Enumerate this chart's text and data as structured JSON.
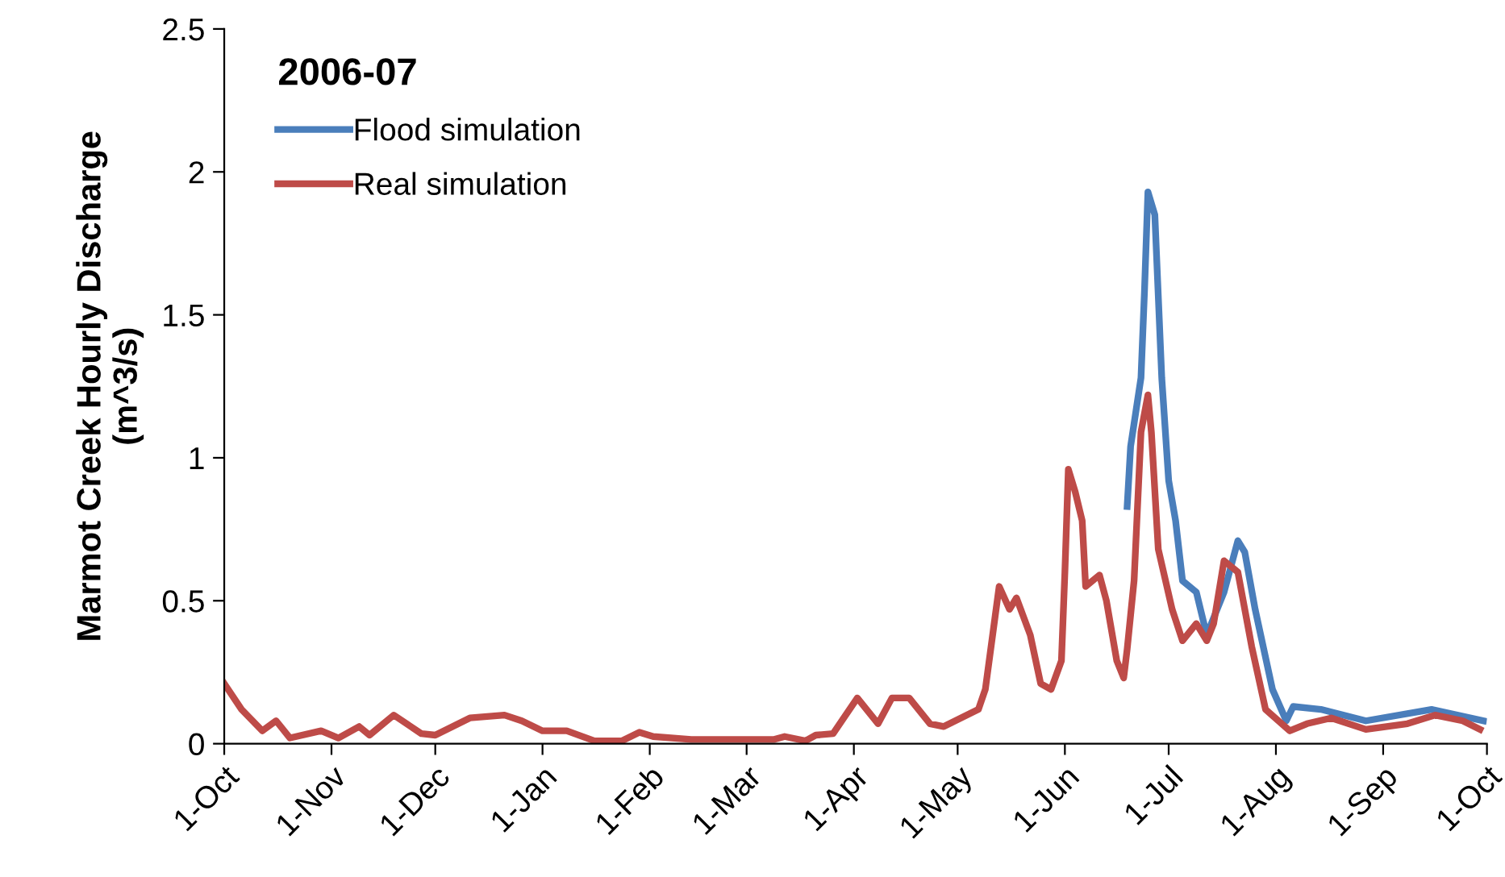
{
  "chart_data": {
    "type": "line",
    "legend_title": "2006-07",
    "ylabel": "Marmot Creek Hourly Discharge\n(m^3/s)",
    "legend": "top left",
    "grid": false,
    "xlim": [
      "2006-10-01",
      "2007-10-01"
    ],
    "xticks": [
      {
        "value": "2006-10-01",
        "label": "1-Oct"
      },
      {
        "value": "2006-11-01",
        "label": "1-Nov"
      },
      {
        "value": "2006-12-01",
        "label": "1-Dec"
      },
      {
        "value": "2007-01-01",
        "label": "1-Jan"
      },
      {
        "value": "2007-02-01",
        "label": "1-Feb"
      },
      {
        "value": "2007-03-01",
        "label": "1-Mar"
      },
      {
        "value": "2007-04-01",
        "label": "1-Apr"
      },
      {
        "value": "2007-05-01",
        "label": "1-May"
      },
      {
        "value": "2007-06-01",
        "label": "1-Jun"
      },
      {
        "value": "2007-07-01",
        "label": "1-Jul"
      },
      {
        "value": "2007-08-01",
        "label": "1-Aug"
      },
      {
        "value": "2007-09-01",
        "label": "1-Sep"
      },
      {
        "value": "2007-10-01",
        "label": "1-Oct"
      }
    ],
    "ylim": [
      0,
      2.5
    ],
    "yticks": [
      0,
      0.5,
      1,
      1.5,
      2,
      2.5
    ],
    "series": [
      {
        "name": "Flood simulation",
        "color": "#4a7ebb",
        "x": [
          "2007-06-19",
          "2007-06-20",
          "2007-06-23",
          "2007-06-24",
          "2007-06-25",
          "2007-06-27",
          "2007-06-29",
          "2007-07-01",
          "2007-07-03",
          "2007-07-05",
          "2007-07-09",
          "2007-07-12",
          "2007-07-17",
          "2007-07-21",
          "2007-07-23",
          "2007-07-26",
          "2007-07-31",
          "2007-08-04",
          "2007-08-06",
          "2007-08-14",
          "2007-08-27",
          "2007-09-15",
          "2007-09-30"
        ],
        "values": [
          0.83,
          1.04,
          1.28,
          1.58,
          1.93,
          1.85,
          1.28,
          0.92,
          0.78,
          0.57,
          0.53,
          0.38,
          0.53,
          0.71,
          0.67,
          0.47,
          0.19,
          0.08,
          0.13,
          0.12,
          0.08,
          0.12,
          0.08
        ]
      },
      {
        "name": "Real simulation",
        "color": "#be4b48",
        "x": [
          "2006-10-01",
          "2006-10-06",
          "2006-10-12",
          "2006-10-16",
          "2006-10-20",
          "2006-10-29",
          "2006-11-03",
          "2006-11-09",
          "2006-11-12",
          "2006-11-19",
          "2006-11-27",
          "2006-12-01",
          "2006-12-11",
          "2006-12-21",
          "2006-12-26",
          "2007-01-01",
          "2007-01-08",
          "2007-01-16",
          "2007-01-24",
          "2007-01-29",
          "2007-02-02",
          "2007-02-13",
          "2007-03-09",
          "2007-03-12",
          "2007-03-18",
          "2007-03-21",
          "2007-03-26",
          "2007-04-02",
          "2007-04-08",
          "2007-04-12",
          "2007-04-17",
          "2007-04-23",
          "2007-04-27",
          "2007-05-07",
          "2007-05-09",
          "2007-05-13",
          "2007-05-16",
          "2007-05-18",
          "2007-05-22",
          "2007-05-25",
          "2007-05-28",
          "2007-05-31",
          "2007-06-01",
          "2007-06-02",
          "2007-06-04",
          "2007-06-06",
          "2007-06-07",
          "2007-06-11",
          "2007-06-13",
          "2007-06-16",
          "2007-06-18",
          "2007-06-19",
          "2007-06-21",
          "2007-06-23",
          "2007-06-25",
          "2007-06-26",
          "2007-06-28",
          "2007-07-02",
          "2007-07-05",
          "2007-07-09",
          "2007-07-12",
          "2007-07-14",
          "2007-07-17",
          "2007-07-21",
          "2007-07-25",
          "2007-07-29",
          "2007-08-05",
          "2007-08-10",
          "2007-08-17",
          "2007-08-27",
          "2007-09-08",
          "2007-09-16",
          "2007-09-24",
          "2007-09-29"
        ],
        "values": [
          0.21,
          0.12,
          0.045,
          0.08,
          0.02,
          0.045,
          0.02,
          0.06,
          0.03,
          0.1,
          0.035,
          0.03,
          0.09,
          0.1,
          0.08,
          0.045,
          0.045,
          0.01,
          0.01,
          0.04,
          0.025,
          0.015,
          0.015,
          0.025,
          0.01,
          0.03,
          0.035,
          0.16,
          0.07,
          0.16,
          0.16,
          0.07,
          0.06,
          0.12,
          0.19,
          0.55,
          0.47,
          0.51,
          0.38,
          0.21,
          0.19,
          0.29,
          0.6,
          0.96,
          0.88,
          0.78,
          0.55,
          0.59,
          0.5,
          0.29,
          0.23,
          0.33,
          0.57,
          1.09,
          1.22,
          1.09,
          0.68,
          0.47,
          0.36,
          0.42,
          0.36,
          0.42,
          0.64,
          0.6,
          0.34,
          0.12,
          0.045,
          0.07,
          0.09,
          0.05,
          0.07,
          0.1,
          0.08,
          0.05
        ]
      }
    ]
  }
}
